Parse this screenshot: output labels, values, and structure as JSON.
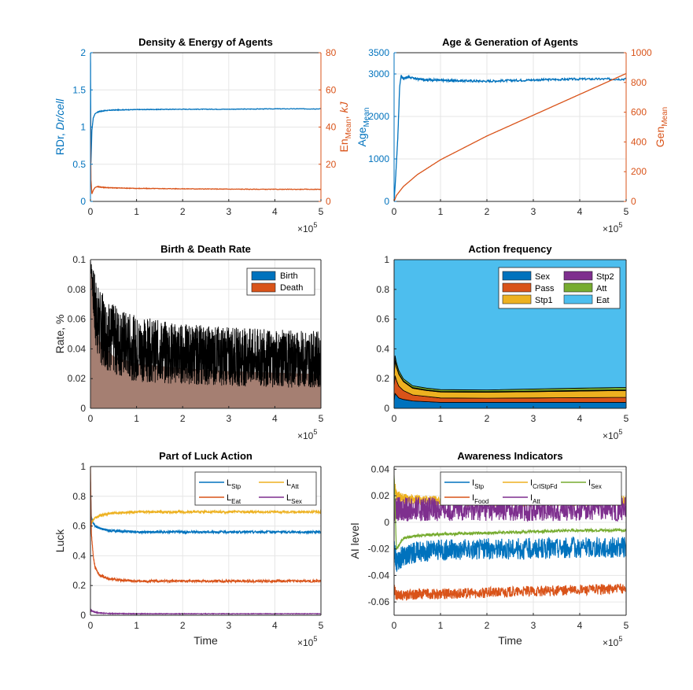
{
  "colors": {
    "blue": "#0072BD",
    "orange": "#D95319",
    "yellow": "#EDB120",
    "purple": "#7E2F8E",
    "green": "#77AC30",
    "cyan": "#4DBEEE",
    "grid": "#E6E6E6",
    "axis": "#262626"
  },
  "exponent": {
    "base": "×10",
    "power": "5"
  },
  "chart_data": [
    {
      "id": "density",
      "type": "line",
      "title": "Density & Energy of Agents",
      "xlabel": "",
      "ylabel": "RDr, Dr/cell",
      "ylabel_parts": [
        "RDr, ",
        "Dr/cell"
      ],
      "y2label": "En_Mean, kJ",
      "y2label_parts": [
        "En",
        "Mean",
        ", ",
        "kJ"
      ],
      "xlim": [
        0,
        5
      ],
      "ylim": [
        0,
        2
      ],
      "y2lim": [
        0,
        80
      ],
      "xticks": [
        "0",
        "1",
        "2",
        "3",
        "4",
        "5"
      ],
      "yticks": [
        "0",
        "0.5",
        "1",
        "1.5",
        "2"
      ],
      "y2ticks": [
        "0",
        "20",
        "40",
        "60",
        "80"
      ],
      "series": [
        {
          "name": "RDr",
          "axis": "left",
          "color": "blue",
          "x": [
            0,
            0.01,
            0.03,
            0.06,
            0.1,
            0.15,
            0.2,
            0.3,
            0.5,
            1,
            2,
            3,
            4,
            5
          ],
          "y": [
            2.0,
            0.5,
            0.95,
            1.12,
            1.18,
            1.2,
            1.21,
            1.22,
            1.23,
            1.235,
            1.24,
            1.24,
            1.245,
            1.245
          ]
        },
        {
          "name": "En_Mean",
          "axis": "right",
          "color": "orange",
          "x": [
            0,
            0.01,
            0.03,
            0.06,
            0.1,
            0.15,
            0.2,
            0.3,
            0.5,
            1,
            2,
            3,
            4,
            5
          ],
          "y": [
            50,
            12,
            4,
            6,
            7.5,
            8,
            7.8,
            7.5,
            7.3,
            7.0,
            6.8,
            6.6,
            6.5,
            6.5
          ]
        }
      ]
    },
    {
      "id": "age",
      "type": "line",
      "title": "Age & Generation of Agents",
      "xlabel": "",
      "ylabel": "Age_Mean",
      "ylabel_parts": [
        "Age",
        "Mean"
      ],
      "y2label": "Gen_Mean",
      "y2label_parts": [
        "Gen",
        "Mean"
      ],
      "xlim": [
        0,
        5
      ],
      "ylim": [
        0,
        3500
      ],
      "y2lim": [
        0,
        1000
      ],
      "xticks": [
        "0",
        "1",
        "2",
        "3",
        "4",
        "5"
      ],
      "yticks": [
        "0",
        "1000",
        "2000",
        "3000",
        "3500"
      ],
      "y2ticks": [
        "0",
        "200",
        "400",
        "600",
        "800",
        "1000"
      ],
      "series": [
        {
          "name": "Age_Mean",
          "axis": "left",
          "color": "blue",
          "x": [
            0,
            0.03,
            0.08,
            0.12,
            0.15,
            0.2,
            0.3,
            0.5,
            1,
            2,
            3,
            4,
            5
          ],
          "y": [
            0,
            500,
            1500,
            2700,
            2950,
            2900,
            2930,
            2880,
            2850,
            2830,
            2860,
            2880,
            2880
          ]
        },
        {
          "name": "Gen_Mean",
          "axis": "right",
          "color": "orange",
          "x": [
            0,
            0.05,
            0.2,
            0.5,
            1,
            1.5,
            2,
            2.5,
            3,
            3.5,
            4,
            4.5,
            5
          ],
          "y": [
            0,
            40,
            100,
            180,
            280,
            360,
            440,
            510,
            580,
            650,
            720,
            790,
            860
          ]
        }
      ]
    },
    {
      "id": "birth",
      "type": "area",
      "title": "Birth & Death Rate",
      "xlabel": "",
      "ylabel": "Rate, %",
      "xlim": [
        0,
        5
      ],
      "ylim": [
        0,
        0.1
      ],
      "xticks": [
        "0",
        "1",
        "2",
        "3",
        "4",
        "5"
      ],
      "yticks": [
        "0",
        "0.02",
        "0.04",
        "0.06",
        "0.08",
        "0.1"
      ],
      "legend": [
        "Birth",
        "Death"
      ],
      "legend_colors": [
        "#0072BD",
        "#D95319"
      ],
      "series": [
        {
          "name": "Death_mean",
          "x": [
            0,
            0.1,
            0.2,
            0.5,
            1,
            2,
            3,
            4,
            5
          ],
          "y": [
            0.1,
            0.06,
            0.045,
            0.035,
            0.03,
            0.027,
            0.025,
            0.024,
            0.023
          ]
        },
        {
          "name": "Noise_upper",
          "x": [
            0,
            0.1,
            0.2,
            0.5,
            1,
            2,
            3,
            4,
            5
          ],
          "y": [
            0.1,
            0.09,
            0.08,
            0.07,
            0.062,
            0.057,
            0.055,
            0.053,
            0.052
          ]
        },
        {
          "name": "Noise_lower",
          "x": [
            0,
            0.1,
            0.2,
            0.5,
            1,
            2,
            3,
            4,
            5
          ],
          "y": [
            0.1,
            0.04,
            0.03,
            0.022,
            0.018,
            0.016,
            0.015,
            0.014,
            0.014
          ]
        }
      ]
    },
    {
      "id": "action",
      "type": "area",
      "title": "Action frequency",
      "xlabel": "",
      "ylabel": "",
      "xlim": [
        0,
        5
      ],
      "ylim": [
        0,
        1
      ],
      "xticks": [
        "0",
        "1",
        "2",
        "3",
        "4",
        "5"
      ],
      "yticks": [
        "0",
        "0.2",
        "0.4",
        "0.6",
        "0.8",
        "1"
      ],
      "legend": [
        "Sex",
        "Stp2",
        "Pass",
        "Att",
        "Stp1",
        "Eat"
      ],
      "x": [
        0,
        0.02,
        0.05,
        0.1,
        0.2,
        0.4,
        0.7,
        1,
        2,
        3,
        4,
        5
      ],
      "series": [
        {
          "name": "Sex",
          "color": "blue",
          "values": [
            0.05,
            0.1,
            0.09,
            0.07,
            0.06,
            0.05,
            0.045,
            0.04,
            0.04,
            0.04,
            0.04,
            0.04
          ]
        },
        {
          "name": "Pass",
          "color": "orange",
          "values": [
            0.1,
            0.12,
            0.1,
            0.08,
            0.06,
            0.04,
            0.035,
            0.03,
            0.028,
            0.03,
            0.032,
            0.034
          ]
        },
        {
          "name": "Stp1",
          "color": "yellow",
          "values": [
            0.05,
            0.1,
            0.09,
            0.08,
            0.06,
            0.045,
            0.04,
            0.04,
            0.04,
            0.042,
            0.044,
            0.046
          ]
        },
        {
          "name": "Stp2",
          "color": "purple",
          "values": [
            0.005,
            0.005,
            0.005,
            0.005,
            0.004,
            0.004,
            0.004,
            0.004,
            0.004,
            0.004,
            0.004,
            0.004
          ]
        },
        {
          "name": "Att",
          "color": "green",
          "values": [
            0.02,
            0.03,
            0.025,
            0.02,
            0.015,
            0.013,
            0.012,
            0.012,
            0.012,
            0.014,
            0.016,
            0.017
          ]
        },
        {
          "name": "Eat",
          "color": "cyan",
          "values": [
            0.775,
            0.645,
            0.69,
            0.745,
            0.801,
            0.848,
            0.864,
            0.874,
            0.876,
            0.87,
            0.864,
            0.859
          ]
        }
      ]
    },
    {
      "id": "luck",
      "type": "line",
      "title": "Part of Luck Action",
      "xlabel": "Time",
      "ylabel": "Luck",
      "xlim": [
        0,
        5
      ],
      "ylim": [
        0,
        1
      ],
      "xticks": [
        "0",
        "1",
        "2",
        "3",
        "4",
        "5"
      ],
      "yticks": [
        "0",
        "0.2",
        "0.4",
        "0.6",
        "0.8",
        "1"
      ],
      "legend": [
        {
          "key": "L_Stp",
          "base": "L",
          "sub": "Stp",
          "color": "blue"
        },
        {
          "key": "L_Att",
          "base": "L",
          "sub": "Att",
          "color": "yellow"
        },
        {
          "key": "L_Eat",
          "base": "L",
          "sub": "Eat",
          "color": "orange"
        },
        {
          "key": "L_Sex",
          "base": "L",
          "sub": "Sex",
          "color": "purple"
        }
      ],
      "series": [
        {
          "name": "L_Stp",
          "color": "blue",
          "x": [
            0,
            0.02,
            0.06,
            0.1,
            0.2,
            0.4,
            0.7,
            1,
            2,
            3,
            4,
            5
          ],
          "y": [
            0.9,
            0.66,
            0.62,
            0.6,
            0.585,
            0.57,
            0.565,
            0.56,
            0.56,
            0.56,
            0.56,
            0.56
          ]
        },
        {
          "name": "L_Att",
          "color": "yellow",
          "x": [
            0,
            0.02,
            0.06,
            0.1,
            0.2,
            0.4,
            0.7,
            1,
            2,
            3,
            4,
            5
          ],
          "y": [
            0.55,
            0.62,
            0.64,
            0.655,
            0.67,
            0.685,
            0.69,
            0.695,
            0.695,
            0.695,
            0.695,
            0.695
          ]
        },
        {
          "name": "L_Eat",
          "color": "orange",
          "x": [
            0,
            0.02,
            0.06,
            0.1,
            0.2,
            0.4,
            0.7,
            1,
            2,
            3,
            4,
            5
          ],
          "y": [
            1.0,
            0.55,
            0.4,
            0.32,
            0.27,
            0.245,
            0.235,
            0.23,
            0.23,
            0.23,
            0.23,
            0.23
          ]
        },
        {
          "name": "L_Sex",
          "color": "purple",
          "x": [
            0,
            0.02,
            0.06,
            0.1,
            0.2,
            0.4,
            1,
            2,
            3,
            4,
            5
          ],
          "y": [
            0.04,
            0.03,
            0.025,
            0.02,
            0.015,
            0.012,
            0.01,
            0.01,
            0.01,
            0.01,
            0.01
          ]
        }
      ]
    },
    {
      "id": "awareness",
      "type": "line",
      "title": "Awareness Indicators",
      "xlabel": "Time",
      "ylabel": "AI level",
      "xlim": [
        0,
        5
      ],
      "ylim": [
        -0.07,
        0.042
      ],
      "xticks": [
        "0",
        "1",
        "2",
        "3",
        "4",
        "5"
      ],
      "yticks": [
        "-0.06",
        "-0.04",
        "-0.02",
        "0",
        "0.02",
        "0.04"
      ],
      "ytick_values": [
        -0.06,
        -0.04,
        -0.02,
        0,
        0.02,
        0.04
      ],
      "legend": [
        {
          "key": "I_Stp",
          "base": "I",
          "sub": "Stp",
          "color": "blue"
        },
        {
          "key": "I_CrlStpFd",
          "base": "I",
          "sub": "CrlStpFd",
          "color": "yellow"
        },
        {
          "key": "I_Sex",
          "base": "I",
          "sub": "Sex",
          "color": "green"
        },
        {
          "key": "I_Food",
          "base": "I",
          "sub": "Food",
          "color": "orange"
        },
        {
          "key": "I_Att",
          "base": "I",
          "sub": "Att",
          "color": "purple"
        }
      ],
      "series": [
        {
          "name": "I_Stp",
          "color": "blue",
          "x": [
            0,
            0.05,
            0.2,
            0.5,
            1,
            2,
            3,
            4,
            5
          ],
          "y": [
            -0.02,
            -0.03,
            -0.025,
            -0.022,
            -0.021,
            -0.02,
            -0.02,
            -0.019,
            -0.019
          ],
          "noise": 0.008
        },
        {
          "name": "I_CrlStpFd",
          "color": "yellow",
          "x": [
            0,
            0.05,
            0.2,
            0.5,
            1,
            2,
            3,
            4,
            5
          ],
          "y": [
            0.03,
            0.02,
            0.018,
            0.017,
            0.016,
            0.016,
            0.016,
            0.016,
            0.016
          ],
          "noise": 0.004
        },
        {
          "name": "I_Att",
          "color": "purple",
          "x": [
            0,
            0.05,
            0.2,
            0.5,
            1,
            2,
            3,
            4,
            5
          ],
          "y": [
            0.01,
            0.01,
            0.01,
            0.01,
            0.01,
            0.01,
            0.01,
            0.01,
            0.01
          ],
          "noise": 0.009
        },
        {
          "name": "I_Food",
          "color": "orange",
          "x": [
            0,
            0.05,
            0.2,
            0.5,
            1,
            2,
            3,
            4,
            5
          ],
          "y": [
            -0.05,
            -0.055,
            -0.055,
            -0.054,
            -0.054,
            -0.053,
            -0.052,
            -0.051,
            -0.05
          ],
          "noise": 0.004
        },
        {
          "name": "I_Sex",
          "color": "green",
          "x": [
            0,
            0.05,
            0.2,
            0.5,
            1,
            2,
            3,
            4,
            5
          ],
          "y": [
            0.035,
            -0.02,
            -0.012,
            -0.01,
            -0.009,
            -0.008,
            -0.007,
            -0.006,
            -0.006
          ],
          "noise": 0.001
        }
      ]
    }
  ]
}
